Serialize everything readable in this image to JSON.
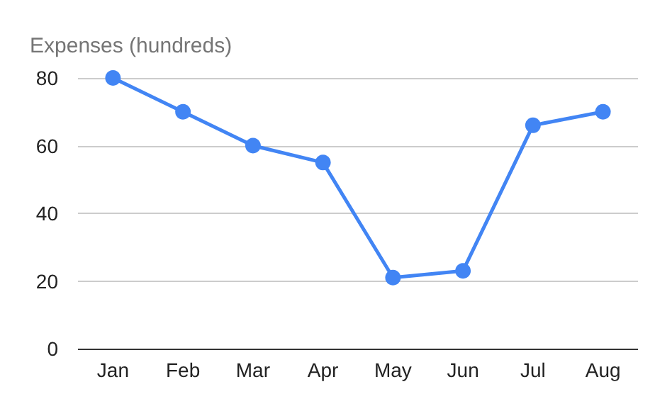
{
  "chart_data": {
    "type": "line",
    "title": "Expenses (hundreds)",
    "categories": [
      "Jan",
      "Feb",
      "Mar",
      "Apr",
      "May",
      "Jun",
      "Jul",
      "Aug"
    ],
    "series": [
      {
        "color": "#4285f4",
        "values": [
          80,
          70,
          60,
          55,
          21,
          23,
          66,
          70
        ]
      }
    ],
    "ylim": [
      0,
      80
    ],
    "yticks": [
      0,
      20,
      40,
      60,
      80
    ],
    "grid": "y",
    "marker": "circle",
    "line_style": "solid"
  }
}
